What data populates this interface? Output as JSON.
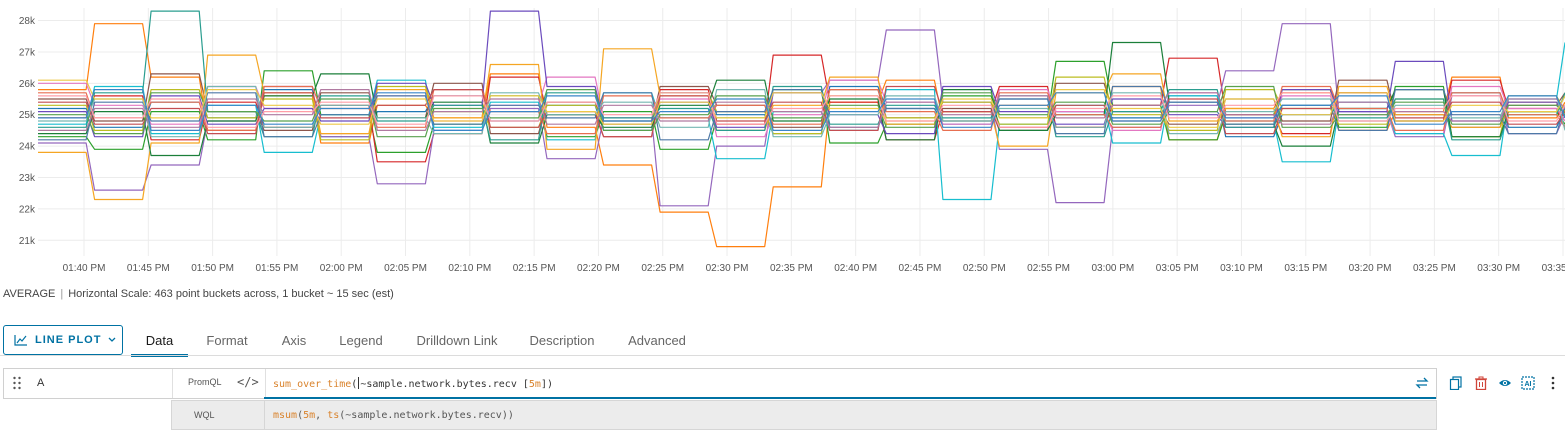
{
  "chart_data": {
    "type": "line",
    "ylabels": [
      "21k",
      "22k",
      "23k",
      "24k",
      "25k",
      "26k",
      "27k",
      "28k"
    ],
    "yvalues": [
      21000,
      22000,
      23000,
      24000,
      25000,
      26000,
      27000,
      28000
    ],
    "ylim": [
      20500,
      28400
    ],
    "xlabels": [
      "01:40 PM",
      "01:45 PM",
      "01:50 PM",
      "01:55 PM",
      "02:00 PM",
      "02:05 PM",
      "02:10 PM",
      "02:15 PM",
      "02:20 PM",
      "02:25 PM",
      "02:30 PM",
      "02:35 PM",
      "02:40 PM",
      "02:45 PM",
      "02:50 PM",
      "02:55 PM",
      "03:00 PM",
      "03:05 PM",
      "03:10 PM",
      "03:15 PM",
      "03:20 PM",
      "03:25 PM",
      "03:30 PM",
      "03:35 PM"
    ],
    "x_start": "01:36 PM",
    "x_end": "03:36 PM",
    "grid": true,
    "series_colors": [
      "#1f77b4",
      "#ff7f0e",
      "#2ca02c",
      "#d62728",
      "#9467bd",
      "#8c564b",
      "#e377c2",
      "#17becf",
      "#bcbd22",
      "#f5a623",
      "#1b7f3a",
      "#6b4bbd",
      "#2a9d8f",
      "#e76f51",
      "#4e79a7",
      "#c44e52",
      "#76b7b2",
      "#59a14f",
      "#edc948",
      "#b07aa1",
      "#ff9da7",
      "#3a86c8"
    ],
    "series": [
      {
        "values": [
          25200,
          24600,
          25400,
          24900,
          25800,
          24300,
          25100,
          25600,
          24800,
          25300,
          24500,
          25700,
          25000,
          24400,
          25900,
          25200,
          24700,
          25500,
          25100,
          24900,
          25600,
          24300,
          25000,
          25400,
          24800,
          25700,
          24600,
          25200
        ]
      },
      {
        "values": [
          25800,
          27900,
          26200,
          24500,
          25600,
          24100,
          25300,
          24900,
          26300,
          24600,
          23400,
          21900,
          20800,
          22700,
          25400,
          26100,
          24800,
          25300,
          24600,
          25900,
          24200,
          25200,
          25700,
          24500,
          25100,
          26200,
          24900,
          25400
        ]
      },
      {
        "values": [
          24300,
          23900,
          25100,
          24200,
          26400,
          25000,
          23800,
          24700,
          25600,
          24300,
          25100,
          23900,
          24900,
          25800,
          24100,
          24700,
          25600,
          24900,
          26700,
          25300,
          24200,
          25000,
          25800,
          24600,
          25900,
          24300,
          25100,
          24700
        ]
      },
      {
        "values": [
          24900,
          25600,
          24200,
          25400,
          24600,
          25300,
          23500,
          24400,
          26200,
          25000,
          24300,
          25800,
          24700,
          26900,
          25400,
          24200,
          25100,
          25900,
          24600,
          25300,
          26800,
          25000,
          24400,
          25700,
          24800,
          26100,
          25200,
          24600
        ]
      },
      {
        "values": [
          24100,
          22600,
          23400,
          24800,
          25900,
          24300,
          22800,
          24500,
          25200,
          23600,
          24900,
          22100,
          24000,
          25700,
          26100,
          27700,
          25400,
          23900,
          22200,
          24600,
          25300,
          26400,
          27900,
          25100,
          24300,
          25600,
          24400,
          25000
        ]
      },
      {
        "values": [
          25500,
          24800,
          26300,
          25100,
          24500,
          25700,
          24900,
          26000,
          24400,
          25400,
          24700,
          25900,
          25300,
          24600,
          25800,
          24900,
          25200,
          24500,
          26000,
          25100,
          24700,
          25500,
          24800,
          26100,
          25000,
          24600,
          25300,
          25700
        ]
      },
      {
        "values": [
          26000,
          25300,
          24700,
          25900,
          25200,
          24400,
          25600,
          24800,
          25300,
          26200,
          24900,
          25500,
          24300,
          25000,
          26100,
          25400,
          24700,
          25800,
          25100,
          24500,
          25700,
          24900,
          25600,
          25000,
          24400,
          25900,
          25200,
          24800
        ]
      },
      {
        "values": [
          24700,
          25900,
          24400,
          25300,
          23800,
          25000,
          26100,
          24600,
          25400,
          24200,
          25700,
          24900,
          23600,
          25100,
          24500,
          25800,
          22300,
          24700,
          25300,
          24100,
          25600,
          24800,
          23500,
          25200,
          24400,
          23700,
          25500,
          27300
        ]
      },
      {
        "values": [
          25300,
          24500,
          25800,
          24900,
          25500,
          24200,
          25900,
          25100,
          24600,
          25300,
          24800,
          25700,
          25100,
          24400,
          25600,
          24900,
          25400,
          24700,
          26200,
          25000,
          24500,
          25800,
          25200,
          24700,
          25500,
          24300,
          25600,
          25100
        ]
      },
      {
        "values": [
          23800,
          22300,
          24100,
          26900,
          25700,
          24400,
          25800,
          24900,
          26600,
          23900,
          27100,
          25600,
          24500,
          25300,
          26200,
          24700,
          25100,
          24000,
          25700,
          26300,
          24800,
          25200,
          24300,
          25900,
          25000,
          24600,
          25400,
          24900
        ]
      },
      {
        "values": [
          24400,
          25100,
          23700,
          24800,
          25600,
          26300,
          24900,
          25400,
          24100,
          25000,
          24600,
          25300,
          26100,
          24800,
          25500,
          24200,
          25800,
          24500,
          25000,
          27300,
          25400,
          24700,
          24000,
          25200,
          25800,
          24300,
          25100,
          25600
        ]
      },
      {
        "values": [
          25100,
          24300,
          25600,
          24700,
          25200,
          24800,
          26000,
          25300,
          28300,
          25900,
          24800,
          25400,
          24600,
          25700,
          25000,
          24400,
          25900,
          25100,
          24700,
          25500,
          25000,
          24600,
          25800,
          25100,
          26700,
          24800,
          25400,
          24900
        ]
      },
      {
        "values": [
          24600,
          25700,
          28300,
          25100,
          24300,
          25600,
          24800,
          25300,
          24200,
          25700,
          24900,
          25200,
          24500,
          25900,
          24700,
          25300,
          24900,
          25600,
          24300,
          25100,
          25800,
          24600,
          25300,
          24900,
          25500,
          24200,
          25000,
          25700
        ]
      },
      {
        "values": [
          25700,
          24900,
          25400,
          24500,
          25900,
          25200,
          24600,
          25800,
          25100,
          24400,
          25600,
          24900,
          25300,
          24700,
          25800,
          25100,
          24500,
          25700,
          25000,
          24600,
          25400,
          24800,
          25900,
          25200,
          24500,
          25700,
          25000,
          24600
        ]
      },
      {
        "values": [
          24200,
          25400,
          24800,
          25700,
          24300,
          25000,
          25600,
          24700,
          25300,
          24900,
          25700,
          24200,
          25100,
          25800,
          24600,
          25200,
          24800,
          25500,
          24400,
          25900,
          25100,
          24700,
          25300,
          24500,
          25800,
          25000,
          24400,
          25300
        ]
      },
      {
        "values": [
          25400,
          24700,
          25200,
          24400,
          25700,
          24900,
          25300,
          25800,
          24600,
          25100,
          24300,
          25600,
          24800,
          25400,
          24500,
          25900,
          25100,
          24600,
          25300,
          24800,
          25500,
          24400,
          25200,
          25700,
          24900,
          25400,
          24700,
          25100
        ]
      },
      {
        "values": [
          24800,
          25500,
          24300,
          25900,
          24600,
          25300,
          24900,
          24400,
          25700,
          25000,
          25400,
          24600,
          25800,
          24300,
          25000,
          25600,
          24800,
          25200,
          24600,
          25700,
          24400,
          25100,
          25500,
          24800,
          25300,
          24900,
          25600,
          24500
        ]
      },
      {
        "values": [
          25000,
          24400,
          25700,
          25100,
          24800,
          25500,
          24300,
          25200,
          24900,
          25800,
          24500,
          25000,
          25600,
          24900,
          25300,
          24600,
          25700,
          25000,
          25400,
          24700,
          25100,
          25900,
          24600,
          25000,
          25400,
          24700,
          25300,
          25000
        ]
      },
      {
        "values": [
          26100,
          25500,
          24900,
          25800,
          25300,
          24700,
          25500,
          24800,
          25600,
          25100,
          24700,
          25400,
          24900,
          25700,
          25200,
          24800,
          25500,
          24900,
          25800,
          25200,
          24600,
          25500,
          25000,
          25700,
          24800,
          25300,
          25100,
          25600
        ]
      },
      {
        "values": [
          24500,
          25200,
          24600,
          25500,
          25000,
          25800,
          24500,
          25100,
          25500,
          24700,
          25300,
          24800,
          25400,
          25100,
          24600,
          25400,
          25000,
          25600,
          24900,
          25300,
          25700,
          25000,
          24700,
          25400,
          25100,
          24800,
          25500,
          25200
        ]
      },
      {
        "values": [
          25600,
          24900,
          25500,
          24600,
          25100,
          25400,
          24700,
          25600,
          24800,
          25400,
          25000,
          25700,
          24700,
          25200,
          25600,
          24800,
          25300,
          24600,
          25200,
          25600,
          24900,
          25300,
          25700,
          24800,
          25200,
          25600,
          24800,
          25300
        ]
      },
      {
        "values": [
          24900,
          25800,
          24500,
          25300,
          24700,
          25200,
          25700,
          24500,
          25100,
          25600,
          24800,
          25100,
          25500,
          24500,
          25100,
          25500,
          24600,
          25300,
          25700,
          24800,
          25400,
          24900,
          25300,
          25600,
          24700,
          25100,
          25600,
          24900
        ]
      }
    ]
  },
  "summary": {
    "mode": "AVERAGE",
    "separator": "|",
    "text": "Horizontal Scale: 463 point buckets across, 1 bucket ~ 15 sec (est)"
  },
  "toolbar": {
    "plot_type": "LINE PLOT",
    "accent": "#0072a3",
    "tabs": [
      {
        "label": "Data",
        "active": true
      },
      {
        "label": "Format",
        "active": false
      },
      {
        "label": "Axis",
        "active": false
      },
      {
        "label": "Legend",
        "active": false
      },
      {
        "label": "Drilldown Link",
        "active": false
      },
      {
        "label": "Description",
        "active": false
      },
      {
        "label": "Advanced",
        "active": false
      }
    ]
  },
  "query": {
    "name": "A",
    "language": "PromQL",
    "code_icon": "</>",
    "promql": {
      "fn": "sum_over_time",
      "open": "(",
      "metric": "~sample.network.bytes.recv [",
      "range": "5m",
      "close": "])"
    },
    "wql_label": "WQL",
    "wql": {
      "fn": "msum",
      "open": "(",
      "arg": "5m",
      "sep": ", ",
      "fn2": "ts",
      "rest": "(~sample.network.bytes.recv))"
    }
  },
  "icons": [
    "drag-handle-icon",
    "line-chart-icon",
    "chevron-down-icon",
    "code-icon",
    "convert-icon",
    "copy-icon",
    "delete-icon",
    "eye-icon",
    "ai-icon",
    "more-vertical-icon"
  ],
  "colors": {
    "delete": "#d0453a",
    "accent": "#0072a3",
    "code_fn": "#d9822b"
  }
}
